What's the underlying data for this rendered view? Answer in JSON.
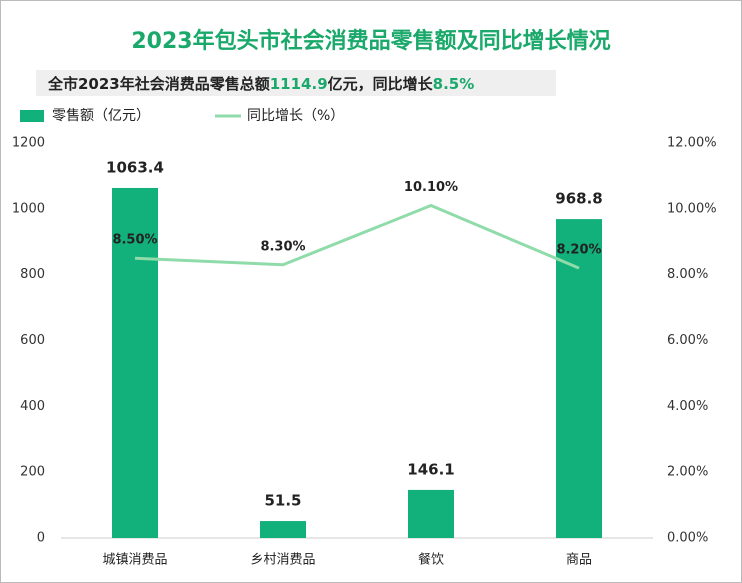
{
  "chart_data": {
    "type": "bar_line",
    "title": "2023年包头市社会消费品零售额及同比增长情况",
    "subtitle": [
      "全市2023年社会消费品零售总额",
      "1114.9",
      "亿元，同比增长",
      "8.5%"
    ],
    "categories": [
      "城镇消费品",
      "乡村消费品",
      "餐饮",
      "商品"
    ],
    "series": [
      {
        "name": "零售额（亿元）",
        "color": "#12b07a",
        "type": "bar",
        "values": [
          1063.4,
          51.5,
          146.1,
          968.8
        ]
      },
      {
        "name": "同比增长（%）",
        "color": "#8fdba9",
        "type": "line",
        "axis": "y2",
        "values": [
          8.5,
          8.3,
          10.1,
          8.2
        ],
        "value_labels": [
          "8.50%",
          "8.30%",
          "10.10%",
          "8.20%"
        ]
      }
    ],
    "ylim": [
      0,
      1200
    ],
    "yticks": [
      0,
      200,
      400,
      600,
      800,
      1000,
      1200
    ],
    "y2lim": [
      0,
      12
    ],
    "y2ticks": [
      {
        "value": 0,
        "label": "0.00%"
      },
      {
        "value": 2,
        "label": "2.00%"
      },
      {
        "value": 4,
        "label": "4.00%"
      },
      {
        "value": 6,
        "label": "6.00%"
      },
      {
        "value": 8,
        "label": "8.00%"
      },
      {
        "value": 10,
        "label": "10.00%"
      },
      {
        "value": 12,
        "label": "12.00%"
      }
    ]
  }
}
